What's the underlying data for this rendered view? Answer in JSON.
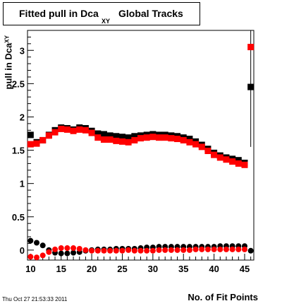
{
  "title": {
    "main": "Fitted pull in Dca",
    "subscript": "XY",
    "tail": "Global Tracks"
  },
  "axes": {
    "xlabel": "No. of Fit Points",
    "ylabel_main": "pull in Dca",
    "ylabel_sub": "XY"
  },
  "footer": "Thu Oct 27 21:53:33 2011",
  "colors": {
    "black_series": "#000000",
    "red_series": "#ff0000"
  },
  "chart_data": {
    "type": "scatter",
    "title": "Fitted pull in Dca XY Global Tracks",
    "xlabel": "No. of Fit Points",
    "ylabel": "pull in Dca XY",
    "xlim": [
      9.5,
      46.5
    ],
    "ylim": [
      -0.15,
      3.3
    ],
    "x_ticks": [
      10,
      15,
      20,
      25,
      30,
      35,
      40,
      45
    ],
    "y_ticks": [
      0,
      0.5,
      1,
      1.5,
      2,
      2.5,
      3
    ],
    "grid": false,
    "series": [
      {
        "color": "#000000",
        "marker": "square",
        "x": [
          10,
          11,
          12,
          13,
          14,
          15,
          16,
          17,
          18,
          19,
          20,
          21,
          22,
          23,
          24,
          25,
          26,
          27,
          28,
          29,
          30,
          31,
          32,
          33,
          34,
          35,
          36,
          37,
          38,
          39,
          40,
          41,
          42,
          43,
          44,
          45,
          46
        ],
        "y": [
          1.73,
          1.62,
          1.65,
          1.73,
          1.8,
          1.84,
          1.83,
          1.81,
          1.84,
          1.83,
          1.79,
          1.75,
          1.74,
          1.72,
          1.71,
          1.7,
          1.69,
          1.71,
          1.72,
          1.73,
          1.74,
          1.73,
          1.73,
          1.72,
          1.71,
          1.69,
          1.67,
          1.63,
          1.58,
          1.52,
          1.46,
          1.42,
          1.39,
          1.37,
          1.35,
          1.31,
          2.45
        ]
      },
      {
        "color": "#ff0000",
        "marker": "square",
        "x": [
          10,
          11,
          12,
          13,
          14,
          15,
          16,
          17,
          18,
          19,
          20,
          21,
          22,
          23,
          24,
          25,
          26,
          27,
          28,
          29,
          30,
          31,
          32,
          33,
          34,
          35,
          36,
          37,
          38,
          39,
          40,
          41,
          42,
          43,
          44,
          45,
          46
        ],
        "y": [
          1.59,
          1.6,
          1.65,
          1.72,
          1.77,
          1.82,
          1.81,
          1.79,
          1.81,
          1.8,
          1.76,
          1.69,
          1.66,
          1.66,
          1.64,
          1.63,
          1.62,
          1.65,
          1.68,
          1.69,
          1.7,
          1.69,
          1.69,
          1.68,
          1.67,
          1.65,
          1.62,
          1.59,
          1.55,
          1.49,
          1.43,
          1.39,
          1.36,
          1.33,
          1.3,
          1.28,
          3.05
        ]
      },
      {
        "color": "#000000",
        "marker": "circle",
        "x": [
          10,
          11,
          12,
          13,
          14,
          15,
          16,
          17,
          18,
          19,
          20,
          21,
          22,
          23,
          24,
          25,
          26,
          27,
          28,
          29,
          30,
          31,
          32,
          33,
          34,
          35,
          36,
          37,
          38,
          39,
          40,
          41,
          42,
          43,
          44,
          45,
          46
        ],
        "y": [
          0.14,
          0.11,
          0.07,
          0.0,
          -0.04,
          -0.05,
          -0.05,
          -0.04,
          -0.03,
          -0.01,
          0.0,
          0.01,
          0.01,
          0.01,
          0.02,
          0.02,
          0.02,
          0.02,
          0.03,
          0.04,
          0.04,
          0.05,
          0.05,
          0.05,
          0.05,
          0.05,
          0.05,
          0.05,
          0.05,
          0.05,
          0.05,
          0.06,
          0.06,
          0.06,
          0.06,
          0.06,
          -0.01
        ]
      },
      {
        "color": "#ff0000",
        "marker": "circle",
        "x": [
          10,
          11,
          12,
          13,
          14,
          15,
          16,
          17,
          18,
          19,
          20,
          21,
          22,
          23,
          24,
          25,
          26,
          27,
          28,
          29,
          30,
          31,
          32,
          33,
          34,
          35,
          36,
          37,
          38,
          39,
          40,
          41,
          42,
          43,
          44,
          45
        ],
        "y": [
          -0.1,
          -0.11,
          -0.08,
          -0.03,
          0.01,
          0.03,
          0.03,
          0.03,
          0.02,
          0.0,
          -0.01,
          -0.01,
          -0.01,
          -0.01,
          -0.01,
          -0.01,
          0.0,
          -0.01,
          -0.01,
          -0.01,
          -0.01,
          0.0,
          0.0,
          0.0,
          0.0,
          0.0,
          0.0,
          0.01,
          0.01,
          0.01,
          0.01,
          0.01,
          0.01,
          0.01,
          0.01,
          0.01
        ]
      }
    ]
  }
}
